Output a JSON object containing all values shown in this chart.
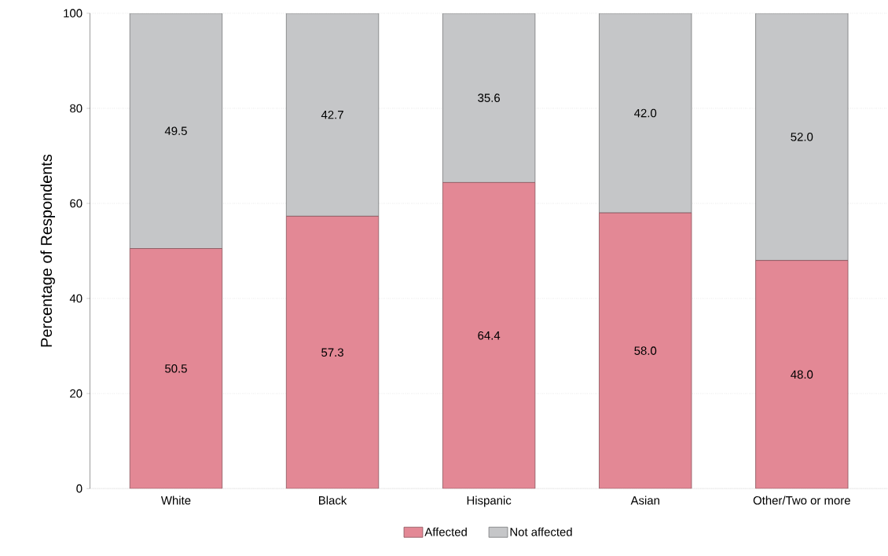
{
  "chart_data": {
    "type": "bar",
    "stacked": true,
    "ylabel": "Percentage of Respondents",
    "categories": [
      "White",
      "Black",
      "Hispanic",
      "Asian",
      "Other/Two or more"
    ],
    "series": [
      {
        "name": "Affected",
        "color": "#e38895",
        "values": [
          50.5,
          57.3,
          64.4,
          58.0,
          48.0
        ],
        "value_labels": [
          "50.5",
          "57.3",
          "64.4",
          "58.0",
          "48.0"
        ]
      },
      {
        "name": "Not affected",
        "color": "#c5c6c8",
        "values": [
          49.5,
          42.7,
          35.6,
          42.0,
          52.0
        ],
        "value_labels": [
          "49.5",
          "42.7",
          "35.6",
          "42.0",
          "52.0"
        ]
      }
    ],
    "ylim": [
      0,
      100
    ],
    "yticks": [
      0,
      20,
      40,
      60,
      80,
      100
    ],
    "grid": "y",
    "legend": "bottom"
  }
}
